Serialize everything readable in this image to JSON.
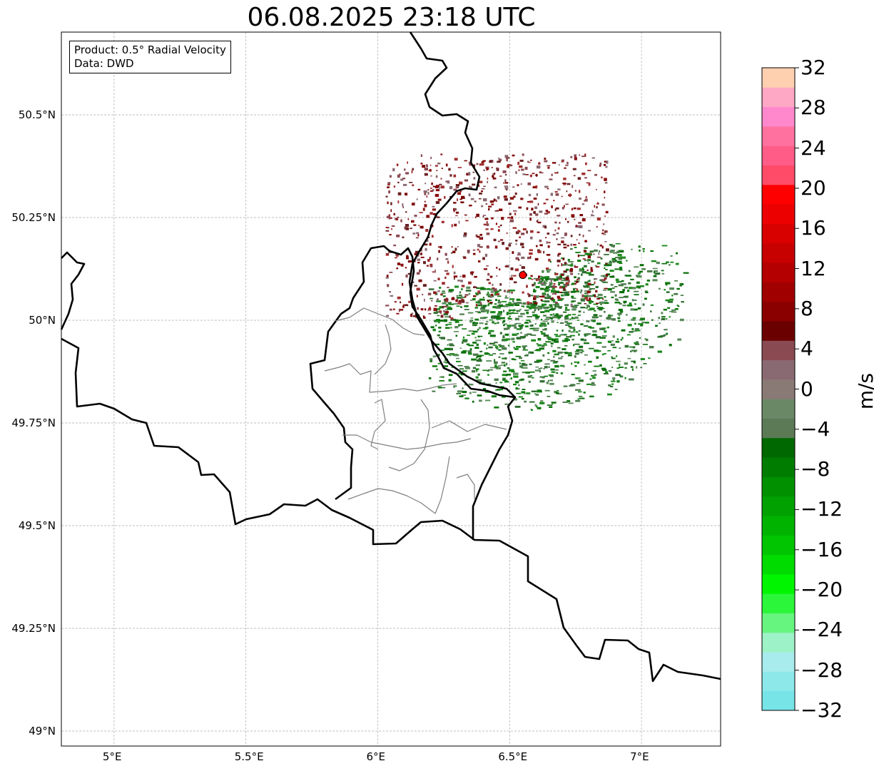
{
  "title": "06.08.2025 23:18 UTC",
  "info_box": {
    "product": "Product: 0.5° Radial Velocity",
    "data": "Data: DWD"
  },
  "map": {
    "lon_range": [
      4.8,
      7.3
    ],
    "lat_range": [
      48.95,
      50.7
    ],
    "x_ticks": [
      "5°E",
      "5.5°E",
      "6°E",
      "6.5°E",
      "7°E"
    ],
    "y_ticks": [
      "50.5°N",
      "50.25°N",
      "50°N",
      "49.75°N",
      "49.5°N",
      "49.25°N",
      "49°N"
    ],
    "radar_site": {
      "lon": 6.55,
      "lat": 50.11,
      "color": "#ff0000"
    },
    "grid": true
  },
  "colorbar": {
    "label": "m/s",
    "ticks": [
      "32",
      "28",
      "24",
      "20",
      "16",
      "12",
      "8",
      "4",
      "0",
      "−4",
      "−8",
      "−12",
      "−16",
      "−20",
      "−24",
      "−28",
      "−32"
    ],
    "range": [
      -32,
      32
    ],
    "colors": [
      "#77e4e8",
      "#8de8ea",
      "#a8eced",
      "#9ef2c8",
      "#66f57e",
      "#2bf63a",
      "#00f600",
      "#00db00",
      "#00c500",
      "#00b300",
      "#00a100",
      "#009000",
      "#007d00",
      "#006800",
      "#5c7a56",
      "#6a8866",
      "#8a7a76",
      "#8a6a72",
      "#8a4a52",
      "#6a0000",
      "#8a0000",
      "#a00000",
      "#b40000",
      "#c70000",
      "#d90000",
      "#ec0000",
      "#ff0000",
      "#ff4a68",
      "#ff5c88",
      "#ff72a0",
      "#ff88cc",
      "#ffa8c6",
      "#ffd0b0"
    ]
  }
}
